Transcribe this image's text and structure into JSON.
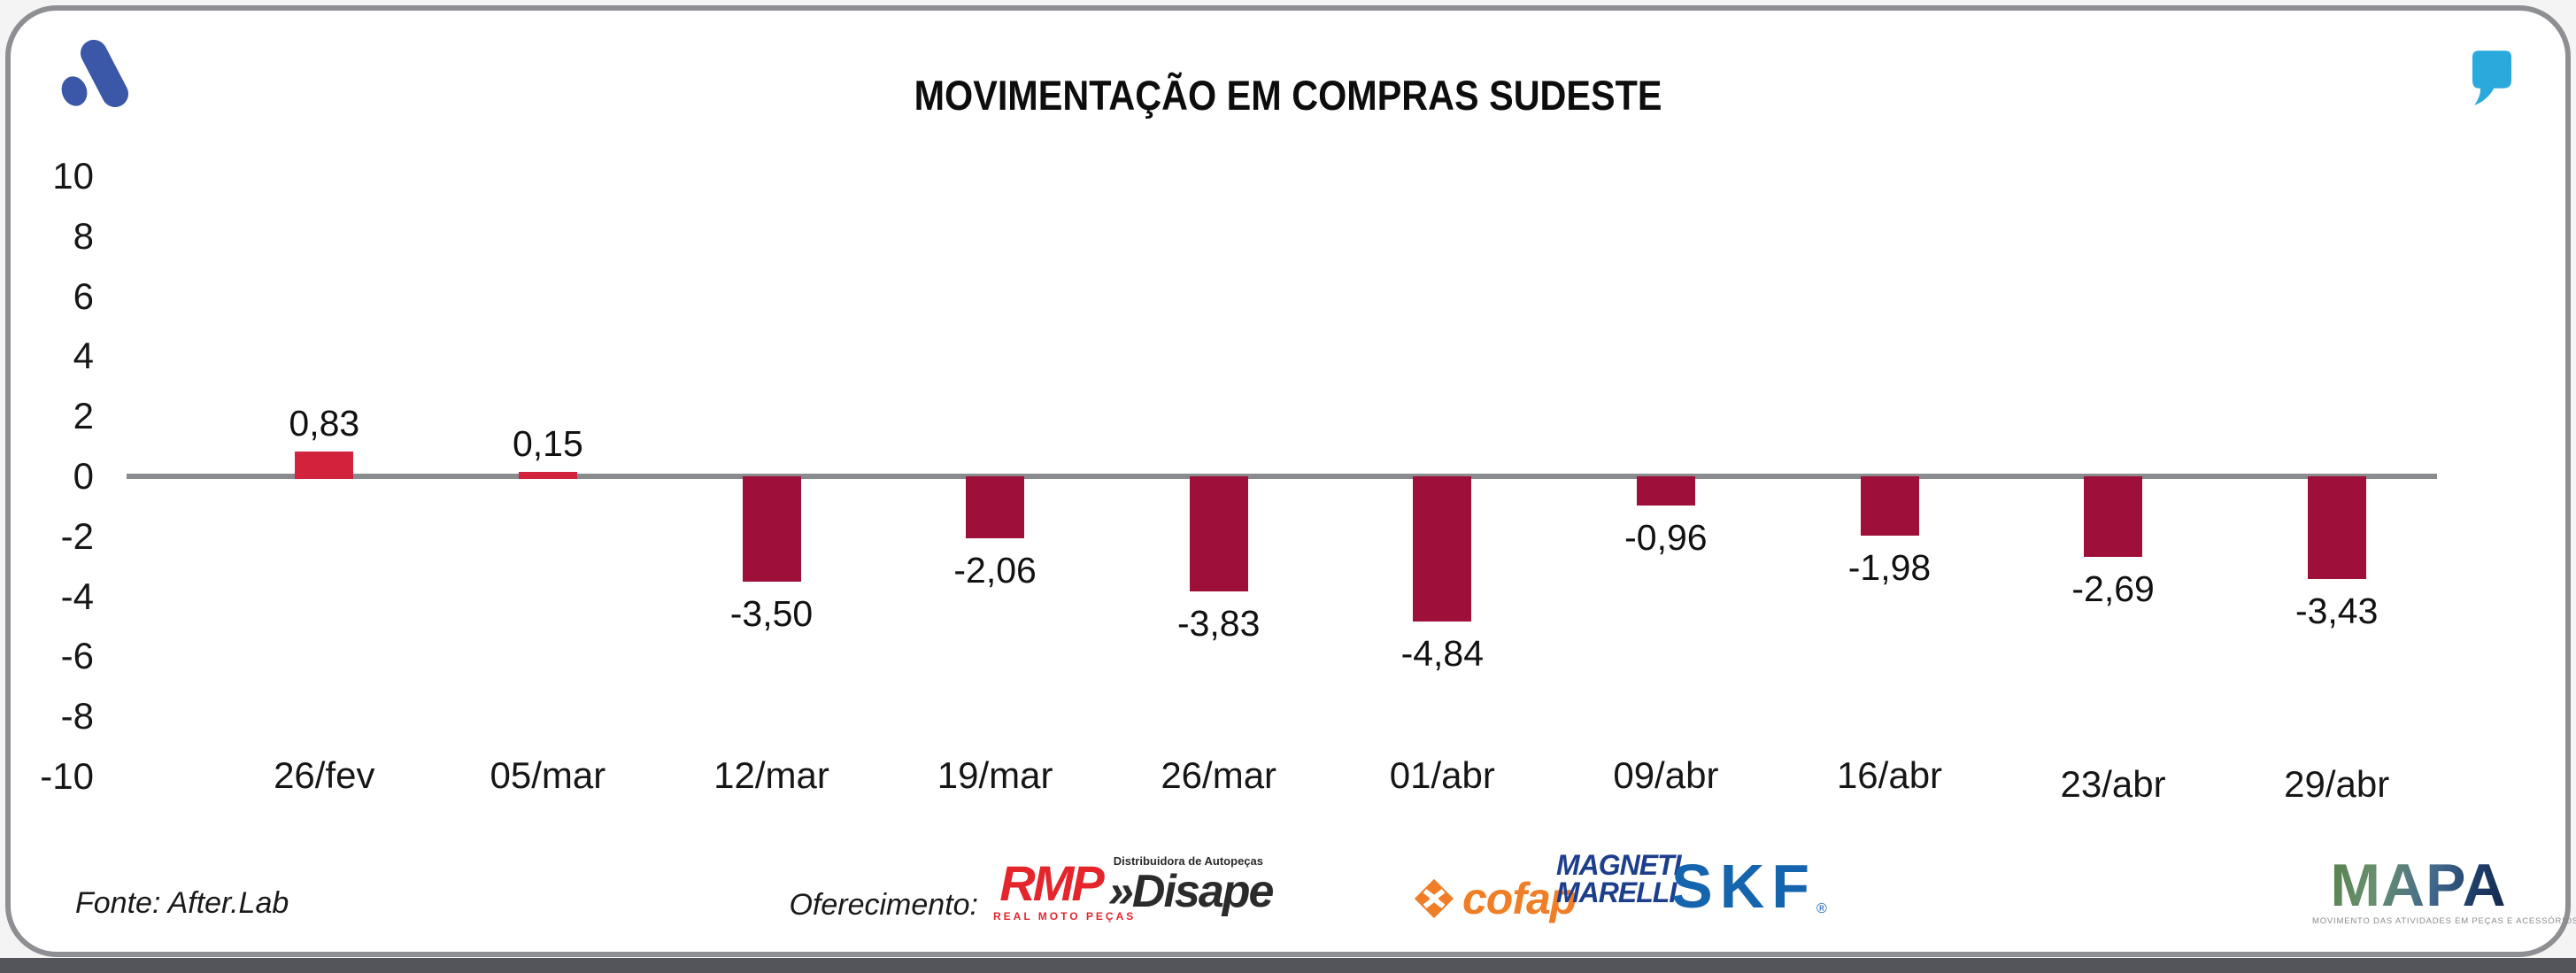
{
  "card": {
    "title": "MOVIMENTAÇÃO EM COMPRAS SUDESTE"
  },
  "chart_data": {
    "type": "bar",
    "title": "MOVIMENTAÇÃO EM COMPRAS SUDESTE",
    "categories": [
      "26/fev",
      "05/mar",
      "12/mar",
      "19/mar",
      "26/mar",
      "01/abr",
      "09/abr",
      "16/abr",
      "23/abr",
      "29/abr"
    ],
    "values": [
      0.83,
      0.15,
      -3.5,
      -2.06,
      -3.83,
      -4.84,
      -0.96,
      -1.98,
      -2.69,
      -3.43
    ],
    "value_labels": [
      "0,83",
      "0,15",
      "-3,50",
      "-2,06",
      "-3,83",
      "-4,84",
      "-0,96",
      "-1,98",
      "-2,69",
      "-3,43"
    ],
    "yticks": [
      10,
      8,
      6,
      4,
      2,
      0,
      -2,
      -4,
      -6,
      -8,
      -10
    ],
    "ylim": [
      -10,
      10
    ],
    "grid": false,
    "legend": "none",
    "xlabel": "",
    "ylabel": "",
    "bar_color_positive": "#D2233C",
    "bar_color_negative": "#9E1039",
    "axis_line_color": "#8A8B8E",
    "xtick_dy": [
      0,
      0,
      0,
      0,
      0,
      0,
      0,
      0,
      10,
      10
    ]
  },
  "icons": {
    "brand_logo": "afterlab-logo",
    "quote": "quote-mark",
    "brand_color": "#3A57A8",
    "quote_color": "#29A9DC"
  },
  "footer": {
    "source": "Fonte: After.Lab",
    "sponsor_label": "Oferecimento:",
    "sponsors": {
      "rmp": {
        "name": "RMP",
        "sub": "REAL MOTO PEÇAS",
        "color": "#E4262C"
      },
      "disape": {
        "prefix": "»",
        "name": "Disape",
        "sub": "Distribuidora de Autopeças",
        "color": "#2B2B2B"
      },
      "cofap": {
        "name": "cofap",
        "color": "#F07E26"
      },
      "magneti": {
        "line1": "MAGNETI",
        "line2": "MARELLI",
        "color": "#1C3E8C"
      },
      "skf": {
        "name": "SKF",
        "reg": "®",
        "color": "#1565AE"
      },
      "mapa": {
        "name": "MAPA",
        "tagline": "MOVIMENTO DAS ATIVIDADES EM PEÇAS E ACESSÓRIOS"
      }
    }
  }
}
